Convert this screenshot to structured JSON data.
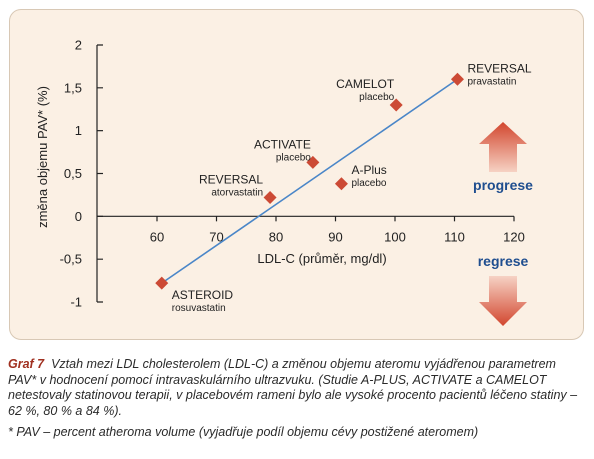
{
  "chart_data": {
    "type": "scatter",
    "xlabel": "LDL-C (průměr, mg/dl)",
    "ylabel": "změna objemu PAV* (%)",
    "xlim": [
      60,
      120
    ],
    "ylim": [
      -1,
      2
    ],
    "x_ticks": [
      "60",
      "70",
      "80",
      "90",
      "100",
      "110",
      "120"
    ],
    "y_ticks": [
      "2",
      "1,5",
      "1",
      "0,5",
      "0",
      "-0,5",
      "-1"
    ],
    "points": [
      {
        "name": "ASTEROID",
        "sub": "rosuvastatin",
        "x": 60.8,
        "y": -0.78
      },
      {
        "name": "REVERSAL",
        "sub": "atorvastatin",
        "x": 79,
        "y": 0.22
      },
      {
        "name": "ACTIVATE",
        "sub": "placebo",
        "x": 86.2,
        "y": 0.63
      },
      {
        "name": "A-Plus",
        "sub": "placebo",
        "x": 91,
        "y": 0.38
      },
      {
        "name": "CAMELOT",
        "sub": "placebo",
        "x": 100.2,
        "y": 1.3
      },
      {
        "name": "REVERSAL",
        "sub": "pravastatin",
        "x": 110.5,
        "y": 1.6
      }
    ],
    "trendline": {
      "x1": 60.8,
      "y1": -0.78,
      "x2": 110.5,
      "y2": 1.6
    },
    "marker_color": "#cc4a35",
    "line_color": "#4a86c8",
    "progress_label": "progrese",
    "regress_label": "regrese",
    "arrow_color": "#d2462e"
  },
  "caption": {
    "graf_label": "Graf 7",
    "text": "Vztah mezi LDL cholesterolem (LDL-C) a změnou objemu ateromu vyjádřenou parametrem PAV* v hodnocení pomocí intravaskulárního ultrazvuku. (Studie A-PLUS, ACTIVATE a CAMELOT netestovaly statinovou terapii, v placebovém rameni bylo ale vysoké procento pacientů léčeno statiny – 62 %, 80 % a 84 %).",
    "footnote": "* PAV – percent atheroma volume (vyjadřuje podíl objemu cévy postižené ateromem)"
  }
}
